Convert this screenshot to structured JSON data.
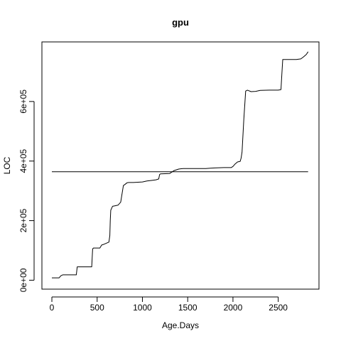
{
  "chart_data": {
    "type": "line",
    "title": "gpu",
    "xlabel": "Age.Days",
    "ylabel": "LOC",
    "xlim": [
      -110,
      2950
    ],
    "ylim": [
      -30000,
      800000
    ],
    "x_ticks": [
      0,
      500,
      1000,
      1500,
      2000,
      2500
    ],
    "x_tick_labels": [
      "0",
      "500",
      "1000",
      "1500",
      "2000",
      "2500"
    ],
    "y_ticks": [
      0,
      200000,
      400000,
      600000
    ],
    "y_tick_labels": [
      "0e+00",
      "2e+05",
      "4e+05",
      "6e+05"
    ],
    "grid": false,
    "legend": "none",
    "line_color": "#000000",
    "series": [
      {
        "x": [
          0,
          80,
          100,
          120,
          270,
          280,
          300,
          440,
          450,
          460,
          530,
          550,
          570,
          630,
          640,
          645,
          650,
          670,
          700,
          730,
          760,
          790,
          800,
          830,
          850,
          900,
          950,
          1000,
          1050,
          1100,
          1150,
          1180,
          1190,
          1200,
          1300,
          1350,
          1400,
          1450,
          1500,
          1600,
          1700,
          1750,
          1800,
          1900,
          1980,
          2000,
          2020,
          2050,
          2080,
          2090,
          2100,
          2120,
          2140,
          2160,
          2200,
          2250,
          2300,
          2400,
          2500,
          2530,
          2540,
          2550,
          2600,
          2700,
          2750,
          2780,
          2810,
          2830
        ],
        "y": [
          8000,
          8000,
          15000,
          18000,
          18000,
          45000,
          45000,
          45000,
          105000,
          108000,
          108000,
          118000,
          120000,
          128000,
          150000,
          200000,
          235000,
          248000,
          250000,
          252000,
          262000,
          318000,
          320000,
          327000,
          328000,
          328000,
          329000,
          330000,
          333000,
          335000,
          337000,
          340000,
          355000,
          357000,
          358000,
          368000,
          373000,
          375000,
          375000,
          375000,
          375000,
          376000,
          377000,
          378000,
          378000,
          382000,
          389000,
          397000,
          399000,
          410000,
          430000,
          540000,
          635000,
          638000,
          633000,
          634000,
          637000,
          638000,
          638000,
          640000,
          690000,
          741000,
          741000,
          741000,
          743000,
          750000,
          758000,
          767000
        ]
      },
      {
        "x": [
          0,
          2830
        ],
        "y": [
          364000,
          364000
        ]
      }
    ]
  }
}
